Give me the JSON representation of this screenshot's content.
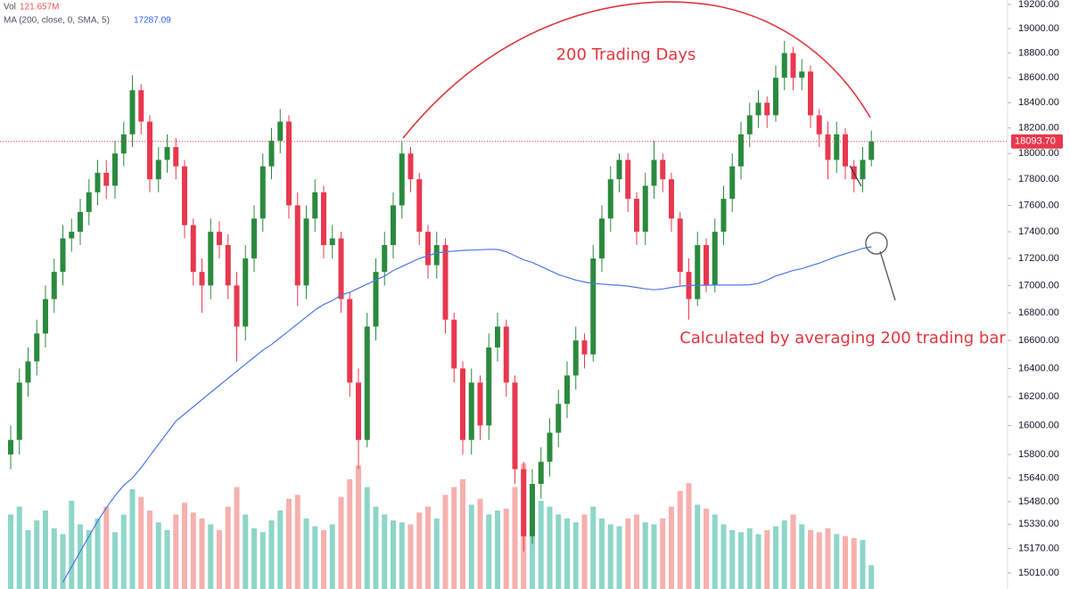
{
  "chart_data": {
    "type": "candlestick",
    "log_scale": true,
    "ylim": [
      14906,
      19237
    ],
    "yticks": [
      {
        "value": 19200,
        "label": "19200.00"
      },
      {
        "value": 19000,
        "label": "19000.00"
      },
      {
        "value": 18800,
        "label": "18800.00"
      },
      {
        "value": 18600,
        "label": "18600.00"
      },
      {
        "value": 18400,
        "label": "18400.00"
      },
      {
        "value": 18200,
        "label": "18200.00"
      },
      {
        "value": 18000,
        "label": "18000.00"
      },
      {
        "value": 17800,
        "label": "17800.00"
      },
      {
        "value": 17600,
        "label": "17600.00"
      },
      {
        "value": 17400,
        "label": "17400.00"
      },
      {
        "value": 17200,
        "label": "17200.00"
      },
      {
        "value": 17000,
        "label": "17000.00"
      },
      {
        "value": 16800,
        "label": "16800.00"
      },
      {
        "value": 16600,
        "label": "16600.00"
      },
      {
        "value": 16400,
        "label": "16400.00"
      },
      {
        "value": 16200,
        "label": "16200.00"
      },
      {
        "value": 16000,
        "label": "16000.00"
      },
      {
        "value": 15800,
        "label": "15800.00"
      },
      {
        "value": 15640,
        "label": "15640.00"
      },
      {
        "value": 15480,
        "label": "15480.00"
      },
      {
        "value": 15330,
        "label": "15330.00"
      },
      {
        "value": 15170,
        "label": "15170.00"
      },
      {
        "value": 15010,
        "label": "15010.00"
      }
    ],
    "open": [
      15800,
      15900,
      16300,
      16450,
      16650,
      16900,
      17100,
      17350,
      17400,
      17550,
      17700,
      17850,
      17750,
      18000,
      18150,
      18500,
      18250,
      17800,
      17950,
      18050,
      17900,
      17450,
      17100,
      17000,
      17400,
      17300,
      17000,
      16700,
      17200,
      17500,
      17900,
      18100,
      18250,
      17600,
      17000,
      17500,
      17700,
      17300,
      17350,
      16900,
      16300,
      15900,
      16700,
      17100,
      17300,
      17600,
      18000,
      17800,
      17400,
      17150,
      17300,
      16750,
      16400,
      15900,
      16300,
      16000,
      16550,
      16700,
      16300,
      15700,
      15250,
      15600,
      15750,
      15950,
      16150,
      16350,
      16600,
      16500,
      17200,
      17500,
      17800,
      17950,
      17650,
      17400,
      17750,
      17950,
      17800,
      17500,
      17100,
      16900,
      17300,
      17000,
      17400,
      17650,
      17900,
      18150,
      18300,
      18400,
      18300,
      18600,
      18800,
      18600,
      18650,
      18300,
      18150,
      17950,
      18150,
      17900,
      17800,
      17950
    ],
    "high": [
      16000,
      16400,
      16550,
      16750,
      17000,
      17200,
      17450,
      17500,
      17650,
      17800,
      17950,
      17950,
      18100,
      18250,
      18620,
      18550,
      18300,
      18050,
      18150,
      18120,
      17950,
      17500,
      17200,
      17500,
      17480,
      17380,
      17100,
      17300,
      17600,
      18000,
      18200,
      18350,
      18300,
      17700,
      17600,
      17800,
      17750,
      17450,
      17400,
      16950,
      16400,
      16800,
      17200,
      17400,
      17700,
      18100,
      18050,
      17850,
      17450,
      17400,
      17350,
      16800,
      16450,
      16400,
      16350,
      16650,
      16800,
      16750,
      16350,
      15750,
      15700,
      15850,
      16050,
      16250,
      16450,
      16700,
      16650,
      17300,
      17600,
      17900,
      18000,
      18000,
      17700,
      17850,
      18100,
      18000,
      17850,
      17550,
      17200,
      17400,
      17350,
      17500,
      17750,
      18000,
      18250,
      18400,
      18500,
      18450,
      18700,
      18900,
      18850,
      18750,
      18700,
      18350,
      18250,
      18250,
      18200,
      17950,
      18050,
      18180
    ],
    "low": [
      15700,
      15800,
      16200,
      16350,
      16550,
      16800,
      17000,
      17250,
      17300,
      17450,
      17600,
      17650,
      17650,
      17900,
      18050,
      18150,
      17700,
      17700,
      17850,
      17800,
      17350,
      17000,
      16800,
      16900,
      17200,
      16900,
      16450,
      16600,
      17100,
      17400,
      17800,
      18000,
      17500,
      16850,
      16900,
      17400,
      17200,
      17200,
      16800,
      16200,
      15700,
      15850,
      16600,
      17000,
      17200,
      17500,
      17700,
      17300,
      17050,
      17050,
      16650,
      16300,
      15800,
      15800,
      15900,
      15900,
      16450,
      16200,
      15600,
      15150,
      15200,
      15500,
      15650,
      15850,
      16050,
      16250,
      16400,
      16450,
      17100,
      17400,
      17700,
      17550,
      17300,
      17300,
      17650,
      17700,
      17400,
      17000,
      16750,
      16850,
      16950,
      16950,
      17300,
      17550,
      17800,
      18050,
      18200,
      18200,
      18250,
      18500,
      18500,
      18500,
      18200,
      18050,
      17800,
      17850,
      17800,
      17700,
      17700,
      17900
    ],
    "close": [
      15900,
      16300,
      16450,
      16650,
      16900,
      17100,
      17350,
      17400,
      17550,
      17700,
      17850,
      17750,
      18000,
      18150,
      18500,
      18250,
      17800,
      17950,
      18050,
      17900,
      17450,
      17100,
      17000,
      17400,
      17300,
      17000,
      16700,
      17200,
      17500,
      17900,
      18100,
      18250,
      17600,
      17000,
      17500,
      17700,
      17300,
      17350,
      16900,
      16300,
      15900,
      16700,
      17100,
      17300,
      17600,
      18000,
      17800,
      17400,
      17150,
      17300,
      16750,
      16400,
      15900,
      16300,
      16000,
      16550,
      16700,
      16300,
      15700,
      15250,
      15600,
      15750,
      15950,
      16150,
      16350,
      16600,
      16500,
      17200,
      17500,
      17800,
      17950,
      17650,
      17400,
      17750,
      17950,
      17800,
      17500,
      17100,
      16900,
      17300,
      17000,
      17400,
      17650,
      17900,
      18150,
      18300,
      18400,
      18300,
      18600,
      18800,
      18600,
      18650,
      18300,
      18150,
      17950,
      18150,
      17900,
      17800,
      17950,
      18093.7
    ],
    "close_label": "18093.70",
    "up_color": "#2b8a3e",
    "down_color": "#e8384f",
    "volume": {
      "name": "Vol",
      "values": [
        380,
        420,
        300,
        350,
        400,
        310,
        280,
        450,
        330,
        300,
        360,
        420,
        290,
        380,
        510,
        470,
        400,
        340,
        300,
        380,
        440,
        390,
        360,
        330,
        300,
        420,
        520,
        380,
        310,
        290,
        350,
        400,
        460,
        480,
        360,
        320,
        300,
        330,
        470,
        560,
        630,
        520,
        420,
        380,
        350,
        340,
        330,
        390,
        420,
        360,
        480,
        520,
        560,
        430,
        460,
        380,
        400,
        410,
        520,
        640,
        500,
        450,
        420,
        380,
        360,
        340,
        380,
        420,
        360,
        330,
        320,
        360,
        380,
        340,
        330,
        360,
        420,
        500,
        540,
        430,
        410,
        380,
        330,
        300,
        290,
        310,
        280,
        300,
        320,
        350,
        380,
        330,
        300,
        290,
        310,
        280,
        270,
        260,
        250,
        121.657
      ],
      "last_label": "121.657M",
      "up_color": "#8ed6c9",
      "down_color": "#f7b0ae"
    },
    "ma": {
      "name": "MA (200, close, 0, SMA, 5)",
      "color": "#4a78e6",
      "values": [
        null,
        null,
        null,
        null,
        null,
        null,
        14950,
        15050,
        15150,
        15250,
        15350,
        15440,
        15520,
        15590,
        15640,
        15710,
        15790,
        15870,
        15950,
        16030,
        16080,
        16130,
        16180,
        16230,
        16280,
        16330,
        16380,
        16430,
        16480,
        16530,
        16570,
        16620,
        16670,
        16720,
        16770,
        16820,
        16860,
        16890,
        16930,
        16950,
        16980,
        17010,
        17040,
        17070,
        17110,
        17140,
        17170,
        17200,
        17220,
        17240,
        17250,
        17255,
        17260,
        17262,
        17265,
        17268,
        17267,
        17250,
        17220,
        17190,
        17170,
        17140,
        17110,
        17080,
        17060,
        17040,
        17025,
        17015,
        17010,
        17005,
        17002,
        16995,
        16985,
        16975,
        16968,
        16975,
        16985,
        16995,
        17000,
        17002,
        17002,
        17003,
        17003,
        17003,
        17003,
        17005,
        17015,
        17040,
        17070,
        17090,
        17110,
        17125,
        17145,
        17165,
        17190,
        17215,
        17235,
        17255,
        17275,
        17287.09
      ]
    },
    "annotations": [
      "200 Trading Days",
      "Calculated by averaging 200 trading bar"
    ]
  }
}
